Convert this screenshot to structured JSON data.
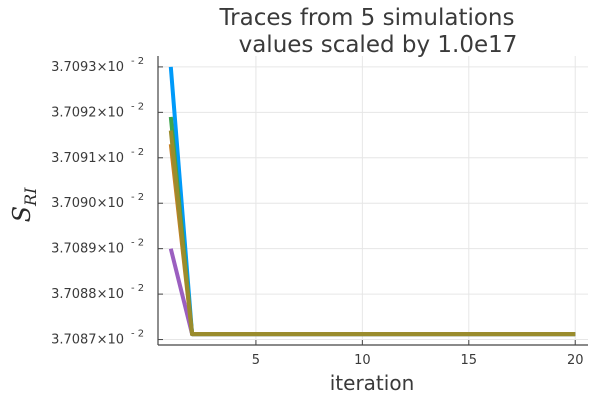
{
  "chart_data": {
    "type": "line",
    "title": [
      "Traces from 5 simulations",
      "values scaled by 1.0e17"
    ],
    "xlabel": "iteration",
    "ylabel": {
      "base": "S",
      "sub": "RI"
    },
    "xlim": [
      0.4,
      20.6
    ],
    "ylim": [
      3.708688,
      3.709324
    ],
    "xticks": [
      5,
      10,
      15,
      20
    ],
    "yticks": [
      {
        "value": 3.7087,
        "base": "3.7087×10",
        "exp": "- 2"
      },
      {
        "value": 3.7088,
        "base": "3.7088×10",
        "exp": "- 2"
      },
      {
        "value": 3.7089,
        "base": "3.7089×10",
        "exp": "- 2"
      },
      {
        "value": 3.709,
        "base": "3.7090×10",
        "exp": "- 2"
      },
      {
        "value": 3.7091,
        "base": "3.7091×10",
        "exp": "- 2"
      },
      {
        "value": 3.7092,
        "base": "3.7092×10",
        "exp": "- 2"
      },
      {
        "value": 3.7093,
        "base": "3.7093×10",
        "exp": "- 2"
      }
    ],
    "grid": true,
    "legend": "none",
    "series": [
      {
        "color": "#9b5fc0",
        "x": [
          1,
          2,
          3,
          20
        ],
        "y": [
          3.7089,
          3.708712,
          3.708712,
          3.708712
        ]
      },
      {
        "color": "#009af9",
        "x": [
          1,
          2,
          3,
          20
        ],
        "y": [
          3.7093,
          3.708712,
          3.708712,
          3.708712
        ]
      },
      {
        "color": "#3da44d",
        "x": [
          1,
          2,
          3,
          20
        ],
        "y": [
          3.70919,
          3.708712,
          3.708712,
          3.708712
        ]
      },
      {
        "color": "#c68125",
        "x": [
          1,
          2,
          3,
          20
        ],
        "y": [
          3.70913,
          3.708712,
          3.708712,
          3.708712
        ]
      },
      {
        "color": "#9a8c2c",
        "x": [
          1,
          2,
          3,
          20
        ],
        "y": [
          3.70916,
          3.708712,
          3.708712,
          3.708712
        ]
      }
    ]
  }
}
